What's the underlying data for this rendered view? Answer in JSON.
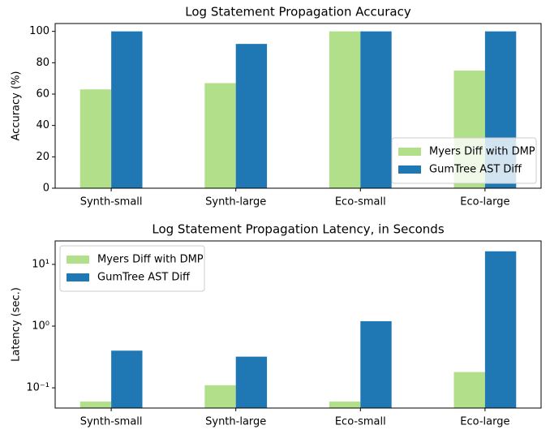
{
  "chart_data": [
    {
      "type": "bar",
      "title": "Log Statement Propagation Accuracy",
      "ylabel": "Accuracy (%)",
      "categories": [
        "Synth-small",
        "Synth-large",
        "Eco-small",
        "Eco-large"
      ],
      "series": [
        {
          "name": "Myers Diff with DMP",
          "color": "#b2df8a",
          "values": [
            63,
            67,
            100,
            75
          ]
        },
        {
          "name": "GumTree AST Diff",
          "color": "#1f78b4",
          "values": [
            100,
            92,
            100,
            100
          ]
        }
      ],
      "ylim": [
        0,
        105
      ],
      "yticks": [
        0,
        20,
        40,
        60,
        80,
        100
      ],
      "legend": "lower right"
    },
    {
      "type": "bar",
      "title": "Log Statement Propagation Latency, in Seconds",
      "ylabel": "Latency (sec.)",
      "categories": [
        "Synth-small",
        "Synth-large",
        "Eco-small",
        "Eco-large"
      ],
      "series": [
        {
          "name": "Myers Diff with DMP",
          "color": "#b2df8a",
          "values": [
            0.06,
            0.11,
            0.06,
            0.18
          ]
        },
        {
          "name": "GumTree AST Diff",
          "color": "#1f78b4",
          "values": [
            0.4,
            0.32,
            1.2,
            16.3
          ]
        }
      ],
      "ylim": [
        0.047,
        24
      ],
      "log": true,
      "yticks": [
        {
          "value": 0.1,
          "label": "10⁻¹"
        },
        {
          "value": 1,
          "label": "10⁰"
        },
        {
          "value": 10,
          "label": "10¹"
        }
      ],
      "legend": "upper left"
    }
  ]
}
